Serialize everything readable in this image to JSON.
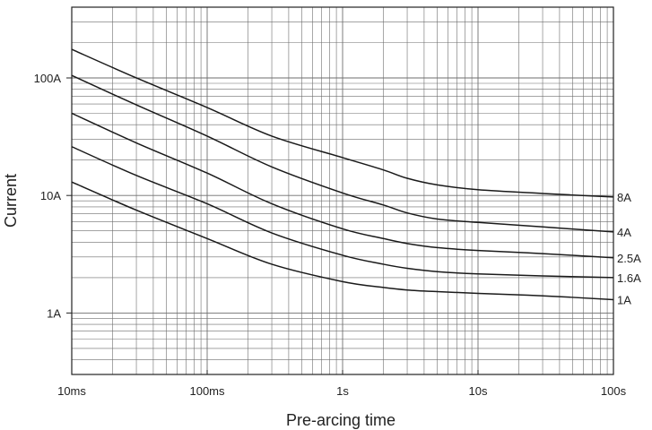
{
  "chart_data": {
    "type": "line",
    "title": "",
    "xlabel": "Pre-arcing time",
    "ylabel": "Current",
    "x_scale": "log",
    "y_scale": "log",
    "x_unit": "s",
    "y_unit": "A",
    "xlim": [
      0.01,
      100
    ],
    "ylim": [
      0.3,
      400
    ],
    "grid": true,
    "legend": "none",
    "x_ticks": [
      {
        "value": 0.01,
        "label": "10ms"
      },
      {
        "value": 0.1,
        "label": "100ms"
      },
      {
        "value": 1,
        "label": "1s"
      },
      {
        "value": 10,
        "label": "10s"
      },
      {
        "value": 100,
        "label": "100s"
      }
    ],
    "y_ticks": [
      {
        "value": 1,
        "label": "1A"
      },
      {
        "value": 10,
        "label": "10A"
      },
      {
        "value": 100,
        "label": "100A"
      }
    ],
    "series": [
      {
        "name": "8A",
        "x": [
          0.01,
          0.03,
          0.1,
          0.3,
          1,
          2,
          3,
          5,
          10,
          30,
          100
        ],
        "y": [
          175,
          100,
          56,
          32,
          21,
          16.5,
          14,
          12.3,
          11.2,
          10.4,
          9.7
        ]
      },
      {
        "name": "4A",
        "x": [
          0.01,
          0.03,
          0.1,
          0.3,
          1,
          2,
          3,
          5,
          10,
          30,
          100
        ],
        "y": [
          105,
          59,
          32,
          17.5,
          10.5,
          8.3,
          7.1,
          6.3,
          5.9,
          5.4,
          4.9
        ]
      },
      {
        "name": "2.5A",
        "x": [
          0.01,
          0.03,
          0.1,
          0.3,
          1,
          2,
          3,
          5,
          10,
          30,
          100
        ],
        "y": [
          50,
          28,
          15.5,
          8.5,
          5.2,
          4.3,
          3.9,
          3.6,
          3.4,
          3.2,
          2.95
        ]
      },
      {
        "name": "1.6A",
        "x": [
          0.01,
          0.03,
          0.1,
          0.3,
          1,
          2,
          3,
          5,
          10,
          30,
          100
        ],
        "y": [
          26,
          14.8,
          8.5,
          4.8,
          3.1,
          2.6,
          2.4,
          2.25,
          2.15,
          2.07,
          2.0
        ]
      },
      {
        "name": "1A",
        "x": [
          0.01,
          0.03,
          0.1,
          0.3,
          1,
          2,
          3,
          5,
          10,
          30,
          100
        ],
        "y": [
          13,
          7.5,
          4.3,
          2.6,
          1.85,
          1.65,
          1.57,
          1.52,
          1.47,
          1.4,
          1.3
        ]
      }
    ],
    "colors": {
      "background": "#ffffff",
      "grid": "#6e6e6e",
      "frame": "#222222",
      "curve": "#1a1a1a",
      "text": "#222222"
    }
  }
}
